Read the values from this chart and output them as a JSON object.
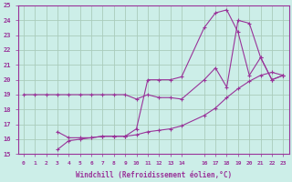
{
  "background_color": "#cceee8",
  "grid_color": "#aaccbb",
  "line_color": "#993399",
  "xlabel": "Windchill (Refroidissement éolien,°C)",
  "xlim": [
    -0.5,
    23.5
  ],
  "ylim": [
    15,
    25
  ],
  "yticks": [
    15,
    16,
    17,
    18,
    19,
    20,
    21,
    22,
    23,
    24,
    25
  ],
  "xtick_vals": [
    0,
    1,
    2,
    3,
    4,
    5,
    6,
    7,
    8,
    9,
    10,
    11,
    12,
    13,
    14,
    16,
    17,
    18,
    19,
    20,
    21,
    22,
    23
  ],
  "xtick_labels": [
    "0",
    "1",
    "2",
    "3",
    "4",
    "5",
    "6",
    "7",
    "8",
    "9",
    "10",
    "11",
    "12",
    "13",
    "14",
    "16",
    "17",
    "18",
    "19",
    "20",
    "21",
    "22",
    "23"
  ],
  "series": [
    {
      "x": [
        0,
        1,
        2,
        3,
        4,
        5,
        6,
        7,
        8,
        9,
        10,
        11,
        12,
        13,
        14,
        16,
        17,
        18,
        19,
        20,
        21,
        22,
        23
      ],
      "y": [
        19,
        19,
        19,
        19,
        19,
        19,
        19,
        19,
        19,
        19,
        18.7,
        19,
        18.8,
        18.8,
        18.7,
        20.0,
        20.8,
        19.5,
        24.0,
        23.8,
        21.5,
        20.0,
        20.3
      ]
    },
    {
      "x": [
        3,
        4,
        5,
        6,
        7,
        8,
        9,
        10,
        11,
        12,
        13,
        14,
        16,
        17,
        18,
        19,
        20,
        21,
        22,
        23
      ],
      "y": [
        16.5,
        16.1,
        16.1,
        16.1,
        16.2,
        16.2,
        16.2,
        16.7,
        20.0,
        20.0,
        20.0,
        20.2,
        23.5,
        24.5,
        24.7,
        23.2,
        20.3,
        21.5,
        20.0,
        20.3
      ]
    },
    {
      "x": [
        3,
        4,
        5,
        6,
        7,
        8,
        9,
        10,
        11,
        12,
        13,
        14,
        16,
        17,
        18,
        19,
        20,
        21,
        22,
        23
      ],
      "y": [
        15.3,
        15.9,
        16.0,
        16.1,
        16.2,
        16.2,
        16.2,
        16.3,
        16.5,
        16.6,
        16.7,
        16.9,
        17.6,
        18.1,
        18.8,
        19.4,
        19.9,
        20.3,
        20.5,
        20.3
      ]
    }
  ]
}
